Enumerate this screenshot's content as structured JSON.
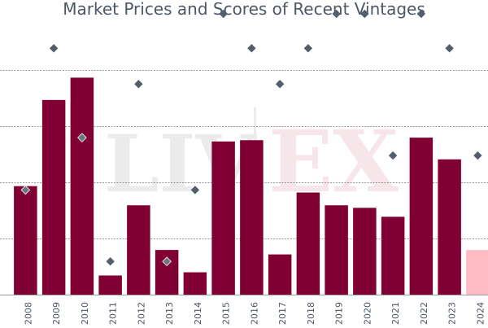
{
  "chart_data": {
    "type": "bar",
    "title": "Market Prices and Scores of Recent Vintages",
    "categories": [
      "2008",
      "2009",
      "2010",
      "2011",
      "2012",
      "2013",
      "2014",
      "2015",
      "2016",
      "2017",
      "2018",
      "2019",
      "2020",
      "2021",
      "2022",
      "2023",
      "2024"
    ],
    "series": [
      {
        "values": [
          1.7,
          3.05,
          3.4,
          0.3,
          1.4,
          0.7,
          0.35,
          2.4,
          2.42,
          0.63,
          1.6,
          1.4,
          1.36,
          1.22,
          2.46,
          2.12,
          0.7
        ]
      },
      {
        "values": [
          1.64,
          3.86,
          2.46,
          0.52,
          3.3,
          0.52,
          1.64,
          4.4,
          3.86,
          3.3,
          3.86,
          4.4,
          4.4,
          2.18,
          4.4,
          3.86,
          2.18
        ]
      }
    ],
    "highlighted_category": "2024",
    "ylim": [
      0,
      4.4
    ],
    "ytick_labels": [
      "",
      "",
      "",
      "",
      ""
    ],
    "grid": true,
    "legend": "none",
    "watermark": "LIV-EX",
    "colors": {
      "bar": "#800033",
      "bar_highlight": "#ffbcc4",
      "marker": "#545e6b",
      "marker_on_bar": "#6b7480",
      "grid": "#7a7a7a",
      "title": "#4d5766",
      "tick_label": "#4d5766",
      "watermark_liv": "#ebebeb",
      "watermark_ex": "#f6e6ea"
    }
  }
}
